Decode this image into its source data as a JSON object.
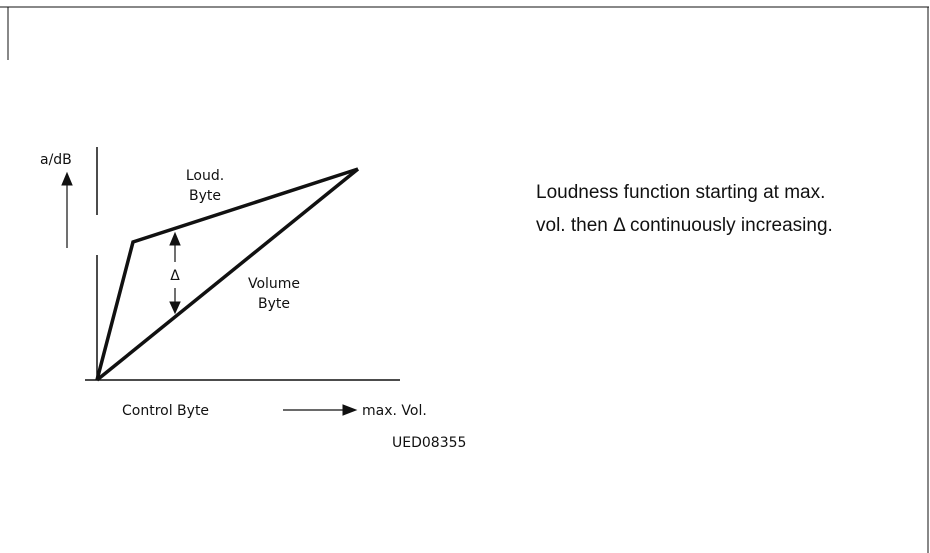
{
  "diagram": {
    "y_axis_label": "a/dB",
    "curves": [
      {
        "label_lines": [
          "Loud.",
          "Byte"
        ]
      },
      {
        "label_lines": [
          "Volume",
          "Byte"
        ]
      }
    ],
    "delta_label": "Δ",
    "x_axis_label": "Control Byte",
    "x_axis_end_label": "max. Vol.",
    "figure_id": "UED08355"
  },
  "caption": {
    "lines": [
      "Loudness function starting at max.",
      "vol. then Δ continuously increasing."
    ]
  }
}
